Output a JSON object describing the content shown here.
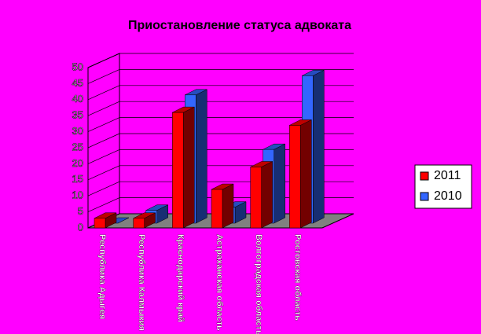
{
  "chart_data": {
    "type": "bar3d",
    "title": "Приостановление статуса адвоката",
    "categories": [
      "Республика Адыгея",
      "Республика Калмыкия",
      "Краснодарский край",
      "Астраханская область",
      "Волгоградская область",
      "Ростовская область"
    ],
    "series": [
      {
        "name": "2011",
        "color": "#ff0000",
        "values": [
          3,
          3,
          36,
          12,
          19,
          32
        ]
      },
      {
        "name": "2010",
        "color": "#3366ff",
        "values": [
          0,
          4,
          40,
          5,
          23,
          46
        ]
      }
    ],
    "ylim": [
      0,
      50
    ],
    "yticks": [
      0,
      5,
      10,
      15,
      20,
      25,
      30,
      35,
      40,
      45,
      50
    ],
    "grid": true,
    "legend": "right"
  }
}
